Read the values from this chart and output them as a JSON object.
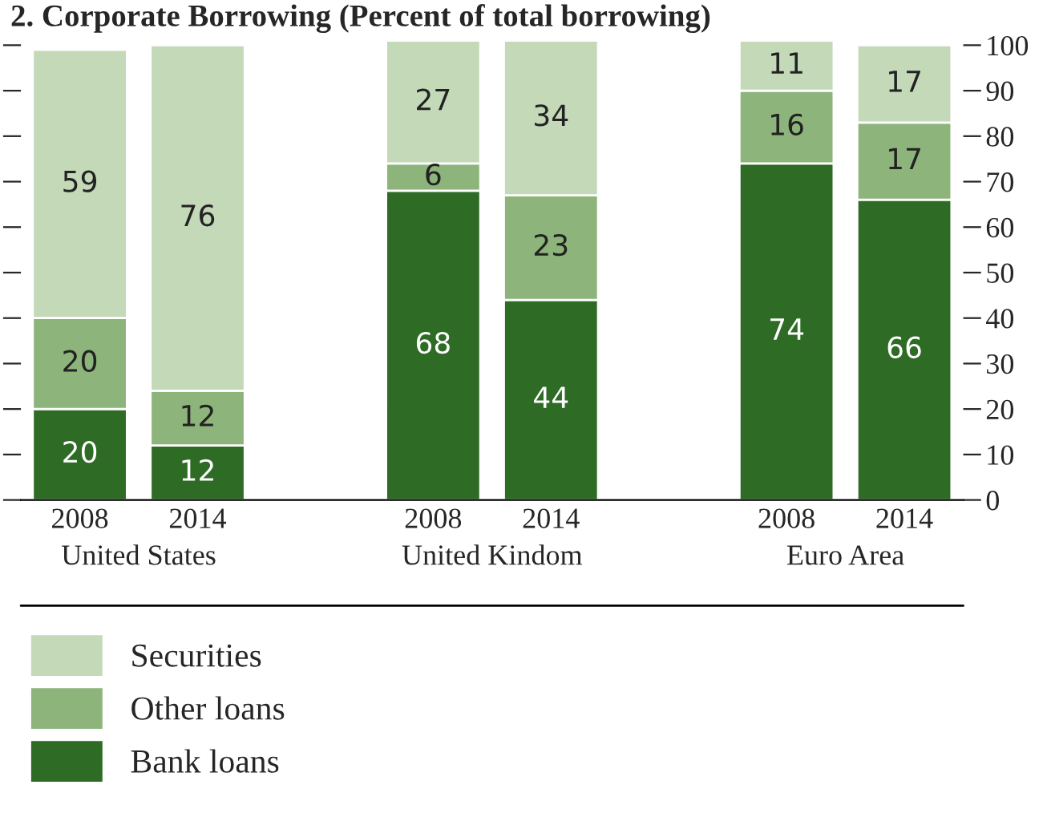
{
  "chart_data": {
    "type": "bar",
    "title": "2. Corporate Borrowing (Percent of total borrowing)",
    "categories": [
      "2008",
      "2014",
      null,
      "2008",
      "2014",
      null,
      "2008",
      "2014"
    ],
    "series": [
      {
        "name": "Bank loans",
        "color": "#2e6b25",
        "values": [
          20,
          12,
          null,
          68,
          44,
          null,
          74,
          66
        ]
      },
      {
        "name": "Other loans",
        "color": "#8db47a",
        "values": [
          20,
          12,
          null,
          6,
          23,
          null,
          16,
          17
        ]
      },
      {
        "name": "Securities",
        "color": "#c3d9b8",
        "values": [
          59,
          76,
          null,
          27,
          34,
          null,
          11,
          17
        ]
      }
    ],
    "stacked": true,
    "data_labels": true,
    "ylim": [
      0,
      101
    ],
    "yticks": [
      0,
      10,
      20,
      30,
      40,
      50,
      60,
      70,
      80,
      90,
      100
    ],
    "annotations": [
      "United States",
      "United Kindom",
      "Euro Area"
    ],
    "legend": "bottom left",
    "grid": false
  }
}
